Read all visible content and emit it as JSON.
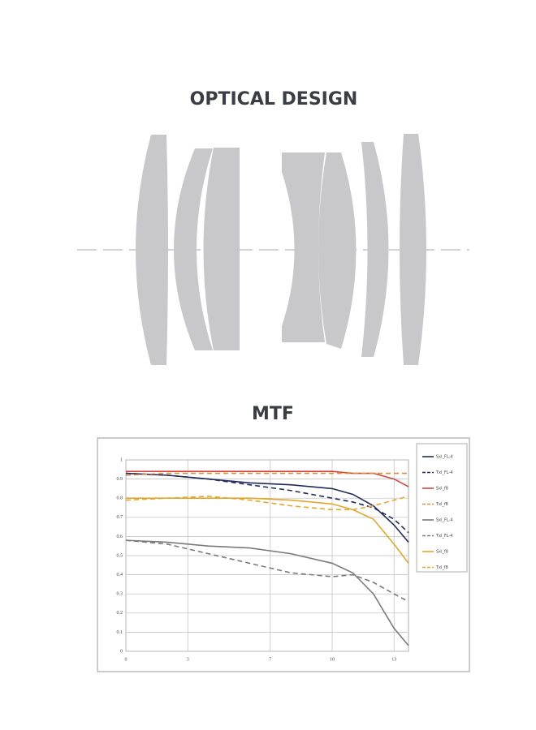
{
  "header": {
    "title": "OPTICAL DESIGN"
  },
  "chart_data": {
    "type": "line",
    "title": "MTF",
    "x": [
      0,
      2,
      4,
      6,
      8,
      10,
      11,
      12,
      13,
      13.7
    ],
    "xlim": [
      0,
      13.7
    ],
    "xticks": [
      0,
      3,
      7,
      10,
      13
    ],
    "ylim": [
      0,
      1
    ],
    "yticks": [
      0,
      0.1,
      0.2,
      0.3,
      0.4,
      0.5,
      0.6,
      0.7,
      0.8,
      0.9,
      1
    ],
    "grid": true,
    "legend": "right",
    "series": [
      {
        "name": "Sxl_FL-4",
        "color": "#1f2a5c",
        "dash": false,
        "values": [
          0.93,
          0.92,
          0.9,
          0.88,
          0.87,
          0.85,
          0.82,
          0.76,
          0.66,
          0.57
        ]
      },
      {
        "name": "Txl_FL-4",
        "color": "#1f2a5c",
        "dash": true,
        "values": [
          0.93,
          0.92,
          0.9,
          0.87,
          0.84,
          0.8,
          0.78,
          0.75,
          0.69,
          0.62
        ]
      },
      {
        "name": "Sxl_f8",
        "color": "#d9443a",
        "dash": false,
        "values": [
          0.94,
          0.94,
          0.94,
          0.94,
          0.94,
          0.94,
          0.93,
          0.93,
          0.9,
          0.86
        ]
      },
      {
        "name": "Txl_f8",
        "color": "#e0893a",
        "dash": true,
        "values": [
          0.92,
          0.93,
          0.93,
          0.93,
          0.93,
          0.93,
          0.93,
          0.93,
          0.93,
          0.93
        ]
      },
      {
        "name": "Sxl_FL-4",
        "color": "#7a7a7a",
        "dash": false,
        "values": [
          0.58,
          0.57,
          0.55,
          0.54,
          0.51,
          0.46,
          0.41,
          0.3,
          0.12,
          0.03
        ]
      },
      {
        "name": "Txl_FL-4",
        "color": "#7a7a7a",
        "dash": true,
        "values": [
          0.58,
          0.56,
          0.51,
          0.46,
          0.41,
          0.39,
          0.4,
          0.36,
          0.3,
          0.26
        ]
      },
      {
        "name": "Sxl_f8",
        "color": "#e5a62a",
        "dash": false,
        "values": [
          0.8,
          0.8,
          0.8,
          0.8,
          0.79,
          0.77,
          0.74,
          0.69,
          0.56,
          0.46
        ]
      },
      {
        "name": "Txl_f8",
        "color": "#e5a62a",
        "dash": true,
        "values": [
          0.79,
          0.8,
          0.81,
          0.79,
          0.76,
          0.74,
          0.74,
          0.76,
          0.79,
          0.81
        ]
      }
    ]
  }
}
